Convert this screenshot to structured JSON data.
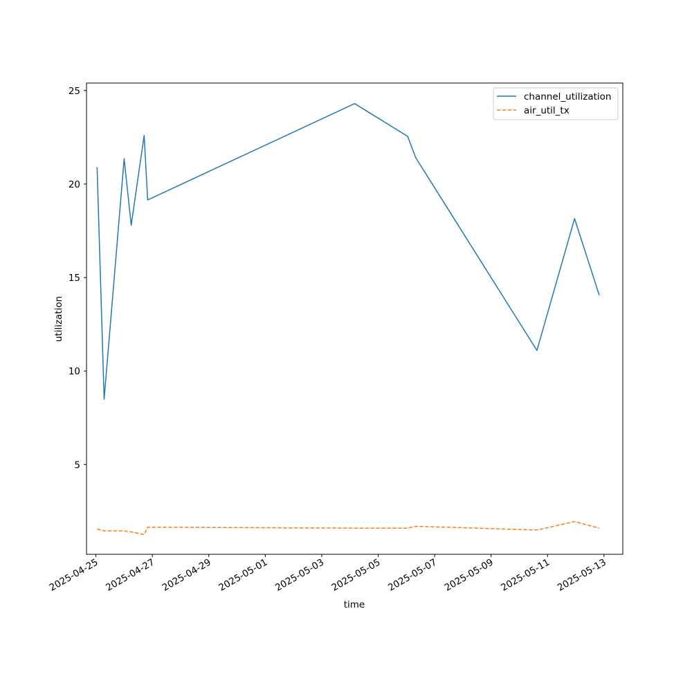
{
  "chart_data": {
    "type": "line",
    "title": "",
    "xlabel": "time",
    "ylabel": "utilization",
    "xlim": [
      "2025-04-24T16:00",
      "2025-05-13T16:00"
    ],
    "ylim": [
      0.2,
      25.4
    ],
    "x_ticks": [
      "2025-04-25",
      "2025-04-27",
      "2025-04-29",
      "2025-05-01",
      "2025-05-03",
      "2025-05-05",
      "2025-05-07",
      "2025-05-09",
      "2025-05-11",
      "2025-05-13"
    ],
    "y_ticks": [
      5,
      10,
      15,
      20,
      25
    ],
    "legend_position": "top-right",
    "grid": false,
    "series": [
      {
        "name": "channel_utilization",
        "color": "#1f77b4",
        "style": "solid",
        "points": [
          {
            "x": "2025-04-25T01:00",
            "y": 20.9
          },
          {
            "x": "2025-04-25T07:00",
            "y": 8.5
          },
          {
            "x": "2025-04-26T00:00",
            "y": 21.35
          },
          {
            "x": "2025-04-26T06:00",
            "y": 17.8
          },
          {
            "x": "2025-04-26T17:00",
            "y": 22.6
          },
          {
            "x": "2025-04-26T20:00",
            "y": 19.15
          },
          {
            "x": "2025-05-04T04:00",
            "y": 24.3
          },
          {
            "x": "2025-05-06T01:00",
            "y": 22.55
          },
          {
            "x": "2025-05-06T08:00",
            "y": 21.4
          },
          {
            "x": "2025-05-10T15:00",
            "y": 11.1
          },
          {
            "x": "2025-05-11T23:00",
            "y": 18.15
          },
          {
            "x": "2025-05-12T20:00",
            "y": 14.05
          }
        ]
      },
      {
        "name": "air_util_tx",
        "color": "#ff7f0e",
        "style": "dashed",
        "points": [
          {
            "x": "2025-04-25T01:00",
            "y": 1.55
          },
          {
            "x": "2025-04-25T07:00",
            "y": 1.45
          },
          {
            "x": "2025-04-26T00:00",
            "y": 1.45
          },
          {
            "x": "2025-04-26T06:00",
            "y": 1.4
          },
          {
            "x": "2025-04-26T17:00",
            "y": 1.25
          },
          {
            "x": "2025-04-26T20:00",
            "y": 1.65
          },
          {
            "x": "2025-05-04T04:00",
            "y": 1.6
          },
          {
            "x": "2025-05-06T01:00",
            "y": 1.6
          },
          {
            "x": "2025-05-06T08:00",
            "y": 1.7
          },
          {
            "x": "2025-05-10T15:00",
            "y": 1.5
          },
          {
            "x": "2025-05-11T23:00",
            "y": 1.95
          },
          {
            "x": "2025-05-12T20:00",
            "y": 1.6
          }
        ]
      }
    ]
  }
}
